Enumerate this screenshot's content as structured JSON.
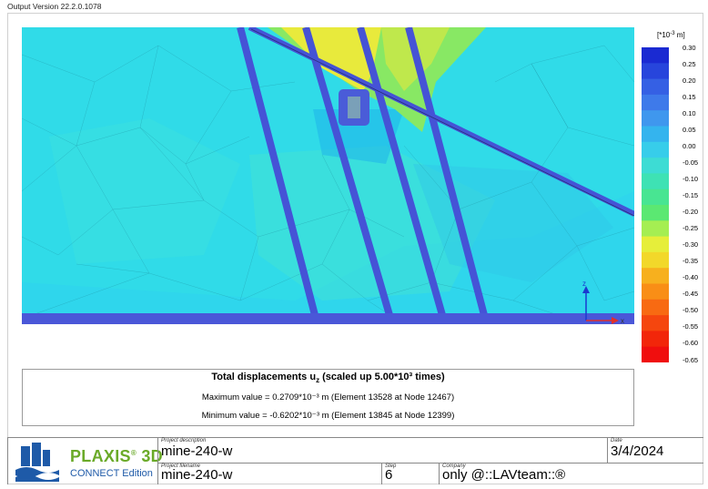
{
  "header": {
    "version": "Output Version 22.2.0.1078"
  },
  "legend": {
    "unit_prefix": "[*10",
    "unit_exp": "-3",
    "unit_suffix": " m]",
    "labels": [
      "0.30",
      "0.25",
      "0.20",
      "0.15",
      "0.10",
      "0.05",
      "0.00",
      "-0.05",
      "-0.10",
      "-0.15",
      "-0.20",
      "-0.25",
      "-0.30",
      "-0.35",
      "-0.40",
      "-0.45",
      "-0.50",
      "-0.55",
      "-0.60",
      "-0.65"
    ],
    "colors": [
      "#1a2ad2",
      "#2745dc",
      "#3560e4",
      "#3e7aea",
      "#3f97ee",
      "#34b4ee",
      "#37cdea",
      "#3ddcd4",
      "#3ee2b4",
      "#48e592",
      "#5be872",
      "#a5ee52",
      "#e6ee3a",
      "#f2d82a",
      "#f7b01e",
      "#f98e16",
      "#f86a12",
      "#f5460e",
      "#f2260a",
      "#f00e0e"
    ]
  },
  "axes": {
    "z": "z",
    "x": "x"
  },
  "results": {
    "title_main": "Total displacements u",
    "title_sub": "z",
    "title_tail": " (scaled up 5.00*10³ times)",
    "max_line": "Maximum value = 0.2709*10⁻³ m (Element 13528 at Node 12467)",
    "min_line": "Minimum value = -0.6202*10⁻³ m (Element 13845 at Node 12399)"
  },
  "titleblock": {
    "brand_name": "PLAXIS",
    "brand_sup": "®",
    "brand_suffix": " 3D",
    "brand_edition": "CONNECT Edition",
    "project_description_label": "Project description",
    "project_description": "mine-240-w",
    "project_filename_label": "Project filename",
    "project_filename": "mine-240-w",
    "step_label": "Step",
    "step": "6",
    "date_label": "Date",
    "date": "3/4/2024",
    "company_label": "Company",
    "company": "only @::LAVteam::®"
  },
  "colors": {
    "background_field": "#2ed8ee",
    "beam": "#4a57d8",
    "brand_green": "#6aaa28",
    "brand_blue": "#1e5aa8"
  }
}
